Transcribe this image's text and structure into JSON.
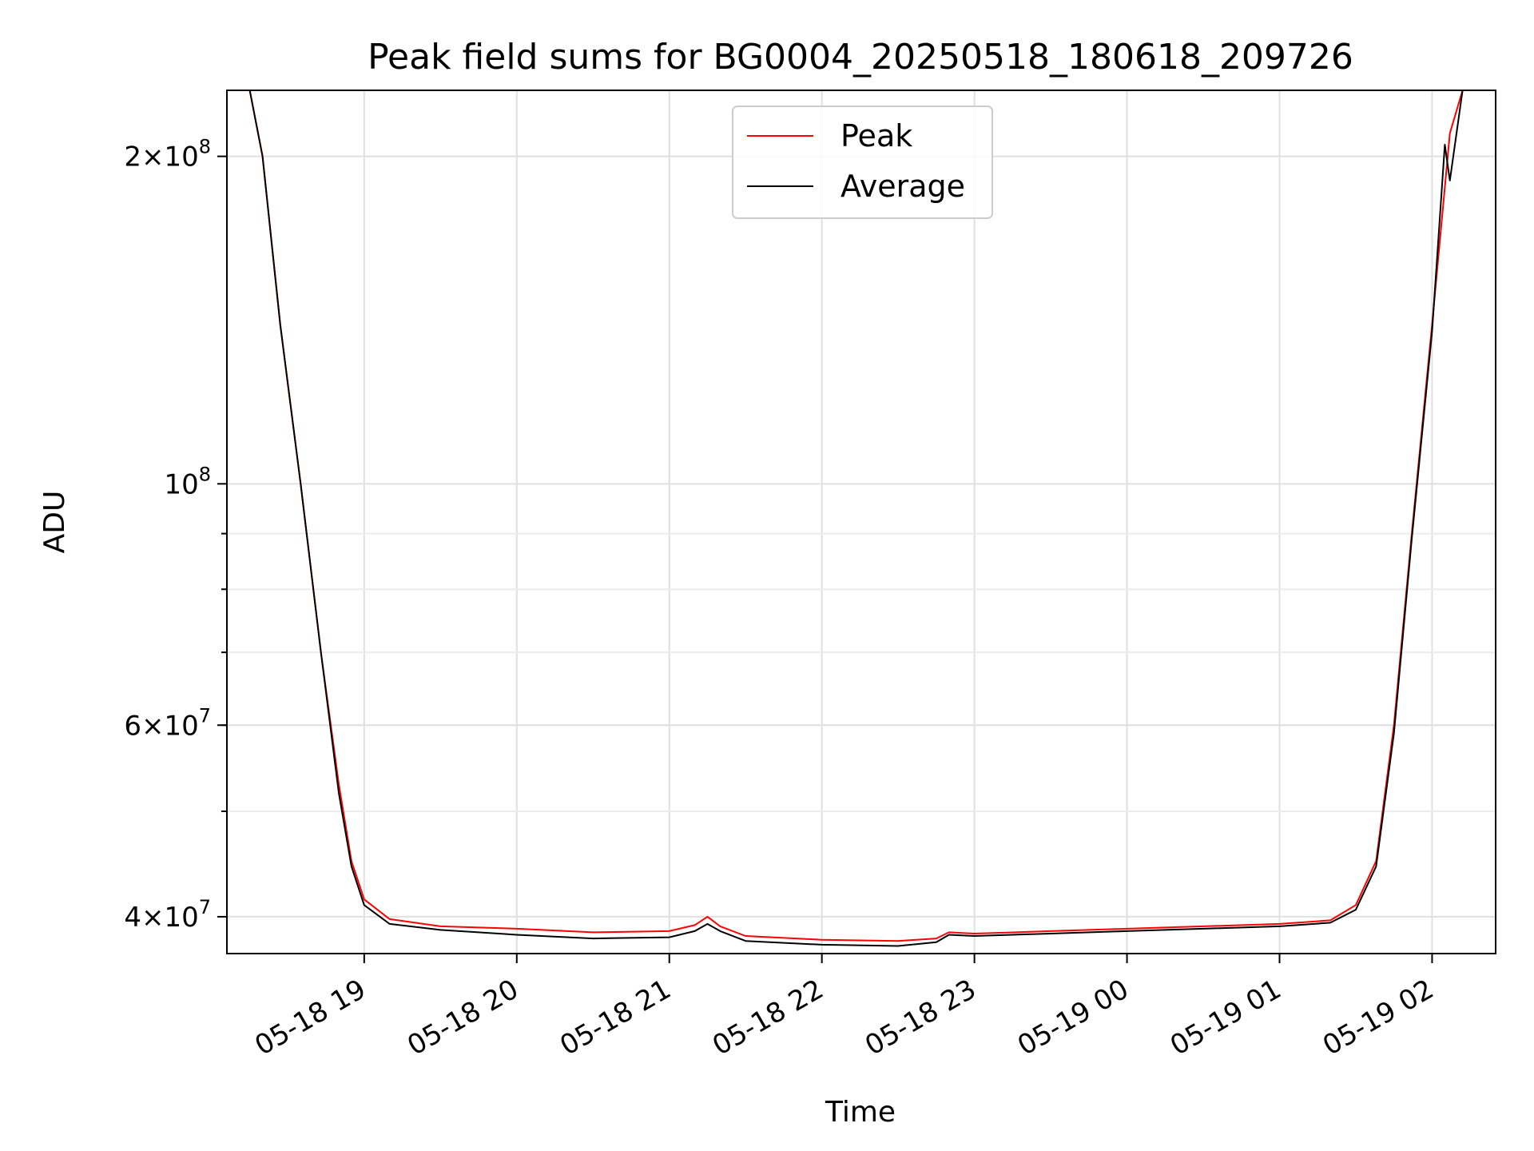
{
  "chart_data": {
    "type": "line",
    "title": "Peak field sums for BG0004_20250518_180618_209726",
    "xlabel": "Time",
    "ylabel": "ADU",
    "y_scale": "log",
    "xlim": [
      "05-18 18:06",
      "05-19 02:25"
    ],
    "ylim": [
      37000000,
      230000000
    ],
    "x_tick_labels": [
      "05-18 19",
      "05-18 20",
      "05-18 21",
      "05-18 22",
      "05-18 23",
      "05-19 00",
      "05-19 01",
      "05-19 02"
    ],
    "y_tick_labels": [
      {
        "value": 200000000,
        "mantissa": "2",
        "exponent": "8"
      },
      {
        "value": 100000000,
        "mantissa": "",
        "exponent": "8"
      },
      {
        "value": 60000000,
        "mantissa": "6",
        "exponent": "7"
      },
      {
        "value": 40000000,
        "mantissa": "4",
        "exponent": "7"
      }
    ],
    "grid": true,
    "legend_position": "top-center",
    "series": [
      {
        "name": "Peak",
        "color": "#ff0000",
        "points": [
          [
            "05-18 18:06",
            230000000
          ],
          [
            "05-18 18:15",
            230000000
          ],
          [
            "05-18 18:20",
            200000000
          ],
          [
            "05-18 18:27",
            140000000
          ],
          [
            "05-18 18:35",
            100000000
          ],
          [
            "05-18 18:43",
            70000000
          ],
          [
            "05-18 18:50",
            53000000
          ],
          [
            "05-18 18:55",
            45000000
          ],
          [
            "05-18 19:00",
            41500000
          ],
          [
            "05-18 19:10",
            39800000
          ],
          [
            "05-18 19:30",
            39200000
          ],
          [
            "05-18 20:00",
            39000000
          ],
          [
            "05-18 20:30",
            38700000
          ],
          [
            "05-18 21:00",
            38800000
          ],
          [
            "05-18 21:10",
            39300000
          ],
          [
            "05-18 21:15",
            40000000
          ],
          [
            "05-18 21:20",
            39200000
          ],
          [
            "05-18 21:30",
            38400000
          ],
          [
            "05-18 22:00",
            38100000
          ],
          [
            "05-18 22:30",
            38000000
          ],
          [
            "05-18 22:45",
            38200000
          ],
          [
            "05-18 22:50",
            38700000
          ],
          [
            "05-18 23:00",
            38600000
          ],
          [
            "05-18 23:30",
            38800000
          ],
          [
            "05-19 00:00",
            39000000
          ],
          [
            "05-19 00:30",
            39200000
          ],
          [
            "05-19 01:00",
            39400000
          ],
          [
            "05-19 01:20",
            39700000
          ],
          [
            "05-19 01:30",
            41000000
          ],
          [
            "05-19 01:38",
            45000000
          ],
          [
            "05-19 01:45",
            60000000
          ],
          [
            "05-19 01:52",
            90000000
          ],
          [
            "05-19 02:00",
            140000000
          ],
          [
            "05-19 02:07",
            210000000
          ],
          [
            "05-19 02:12",
            230000000
          ],
          [
            "05-19 02:25",
            230000000
          ]
        ]
      },
      {
        "name": "Average",
        "color": "#000000",
        "points": [
          [
            "05-18 18:06",
            230000000
          ],
          [
            "05-18 18:15",
            230000000
          ],
          [
            "05-18 18:20",
            200000000
          ],
          [
            "05-18 18:27",
            140000000
          ],
          [
            "05-18 18:35",
            100000000
          ],
          [
            "05-18 18:43",
            70000000
          ],
          [
            "05-18 18:50",
            52000000
          ],
          [
            "05-18 18:55",
            44500000
          ],
          [
            "05-18 19:00",
            41000000
          ],
          [
            "05-18 19:10",
            39400000
          ],
          [
            "05-18 19:30",
            38900000
          ],
          [
            "05-18 20:00",
            38500000
          ],
          [
            "05-18 20:30",
            38200000
          ],
          [
            "05-18 21:00",
            38300000
          ],
          [
            "05-18 21:10",
            38800000
          ],
          [
            "05-18 21:15",
            39400000
          ],
          [
            "05-18 21:20",
            38800000
          ],
          [
            "05-18 21:30",
            38000000
          ],
          [
            "05-18 22:00",
            37700000
          ],
          [
            "05-18 22:30",
            37600000
          ],
          [
            "05-18 22:45",
            37900000
          ],
          [
            "05-18 22:50",
            38500000
          ],
          [
            "05-18 23:00",
            38400000
          ],
          [
            "05-18 23:30",
            38600000
          ],
          [
            "05-19 00:00",
            38800000
          ],
          [
            "05-19 00:30",
            39000000
          ],
          [
            "05-19 01:00",
            39200000
          ],
          [
            "05-19 01:20",
            39500000
          ],
          [
            "05-19 01:30",
            40600000
          ],
          [
            "05-19 01:38",
            44500000
          ],
          [
            "05-19 01:45",
            59000000
          ],
          [
            "05-19 01:52",
            89000000
          ],
          [
            "05-19 02:00",
            138000000
          ],
          [
            "05-19 02:05",
            205000000
          ],
          [
            "05-19 02:07",
            190000000
          ],
          [
            "05-19 02:12",
            230000000
          ],
          [
            "05-19 02:25",
            230000000
          ]
        ]
      }
    ]
  }
}
